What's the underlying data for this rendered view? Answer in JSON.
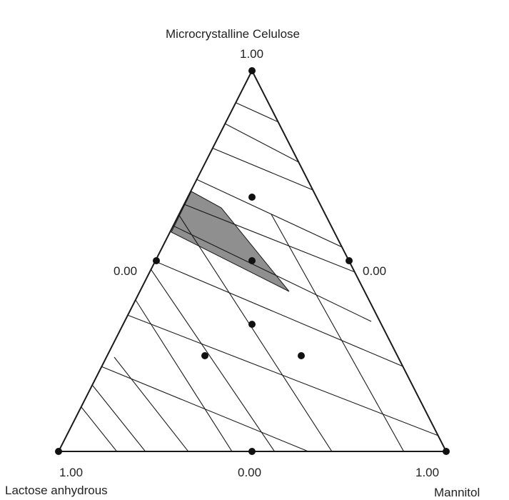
{
  "labels": {
    "top_component": "Microcrystalline Celulose",
    "bottom_left_component": "Lactose anhydrous",
    "bottom_right_component": "Mannitol"
  },
  "ticks": {
    "top_apex": "1.00",
    "left_mid": "0.00",
    "right_mid": "0.00",
    "bottom_left": "1.00",
    "bottom_mid": "0.00",
    "bottom_right": "1.00"
  },
  "colors": {
    "line": "#1a1a1a",
    "region_fill": "#8f8f8f",
    "point": "#111111"
  }
}
